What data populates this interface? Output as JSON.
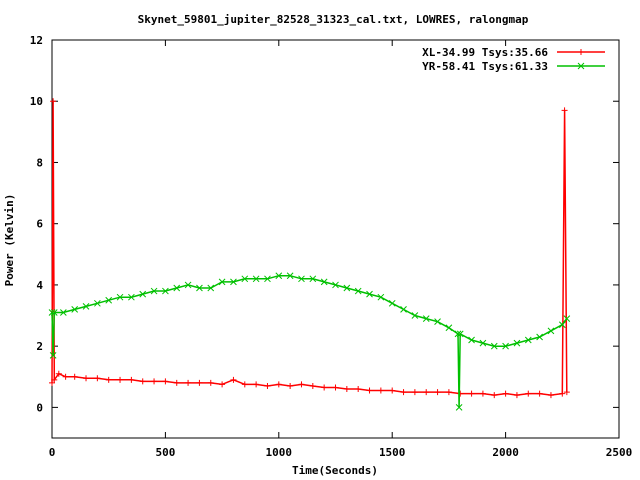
{
  "chart_data": {
    "type": "line",
    "title": "Skynet_59801_jupiter_82528_31323_cal.txt, LOWRES, ralongmap",
    "xlabel": "Time(Seconds)",
    "ylabel": "Power (Kelvin)",
    "xlim": [
      0,
      2500
    ],
    "ylim": [
      -1,
      12
    ],
    "xticks": [
      0,
      500,
      1000,
      1500,
      2000,
      2500
    ],
    "yticks": [
      0,
      2,
      4,
      6,
      8,
      10,
      12
    ],
    "legend_position": "top-right",
    "grid": false,
    "series": [
      {
        "name": "XL-34.99 Tsys:35.66",
        "color": "#ff0000",
        "marker": "plus",
        "x": [
          0,
          5,
          10,
          30,
          60,
          100,
          150,
          200,
          250,
          300,
          350,
          400,
          450,
          500,
          550,
          600,
          650,
          700,
          750,
          800,
          850,
          900,
          950,
          1000,
          1050,
          1100,
          1150,
          1200,
          1250,
          1300,
          1350,
          1400,
          1450,
          1500,
          1550,
          1600,
          1650,
          1700,
          1750,
          1800,
          1850,
          1900,
          1950,
          2000,
          2050,
          2100,
          2150,
          2200,
          2250,
          2260,
          2270
        ],
        "y": [
          0.8,
          10.0,
          0.9,
          1.1,
          1.0,
          1.0,
          0.95,
          0.95,
          0.9,
          0.9,
          0.9,
          0.85,
          0.85,
          0.85,
          0.8,
          0.8,
          0.8,
          0.8,
          0.75,
          0.9,
          0.75,
          0.75,
          0.7,
          0.75,
          0.7,
          0.75,
          0.7,
          0.65,
          0.65,
          0.6,
          0.6,
          0.55,
          0.55,
          0.55,
          0.5,
          0.5,
          0.5,
          0.5,
          0.5,
          0.45,
          0.45,
          0.45,
          0.4,
          0.45,
          0.4,
          0.45,
          0.45,
          0.4,
          0.45,
          9.7,
          0.5
        ]
      },
      {
        "name": "YR-58.41 Tsys:61.33",
        "color": "#00c000",
        "marker": "cross",
        "x": [
          0,
          5,
          10,
          50,
          100,
          150,
          200,
          250,
          300,
          350,
          400,
          450,
          500,
          550,
          600,
          650,
          700,
          750,
          800,
          850,
          900,
          950,
          1000,
          1050,
          1100,
          1150,
          1200,
          1250,
          1300,
          1350,
          1400,
          1450,
          1500,
          1550,
          1600,
          1650,
          1700,
          1750,
          1790,
          1795,
          1800,
          1850,
          1900,
          1950,
          2000,
          2050,
          2100,
          2150,
          2200,
          2250,
          2270
        ],
        "y": [
          3.1,
          1.7,
          3.1,
          3.1,
          3.2,
          3.3,
          3.4,
          3.5,
          3.6,
          3.6,
          3.7,
          3.8,
          3.8,
          3.9,
          4.0,
          3.9,
          3.9,
          4.1,
          4.1,
          4.2,
          4.2,
          4.2,
          4.3,
          4.3,
          4.2,
          4.2,
          4.1,
          4.0,
          3.9,
          3.8,
          3.7,
          3.6,
          3.4,
          3.2,
          3.0,
          2.9,
          2.8,
          2.6,
          2.4,
          0.0,
          2.4,
          2.2,
          2.1,
          2.0,
          2.0,
          2.1,
          2.2,
          2.3,
          2.5,
          2.7,
          2.9
        ]
      }
    ]
  }
}
